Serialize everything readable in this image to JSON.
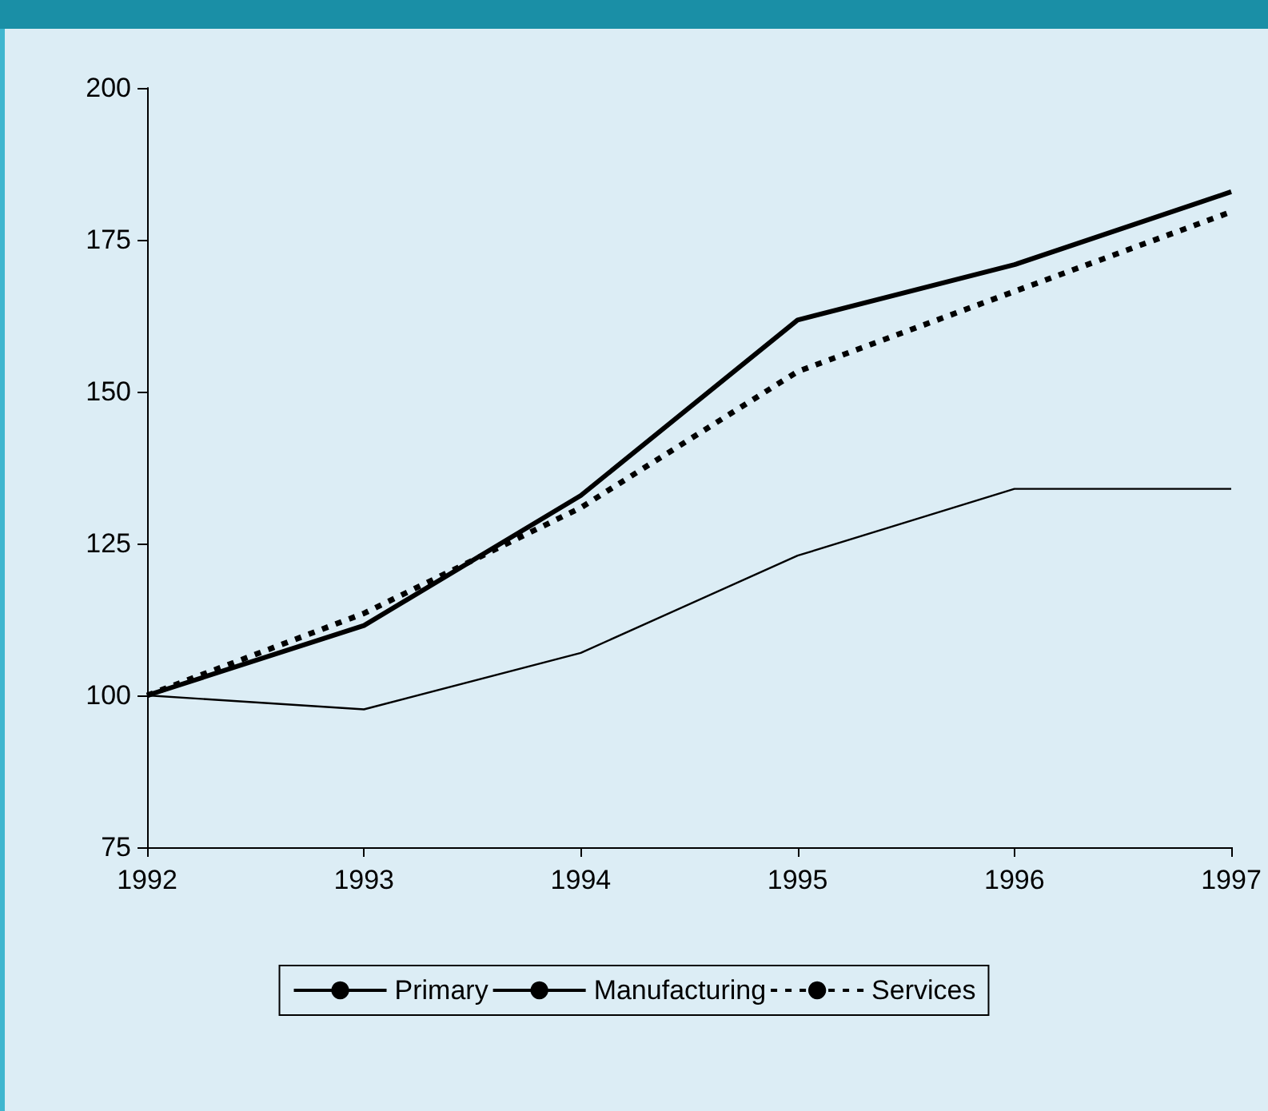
{
  "chart_data": {
    "type": "line",
    "categories": [
      "1992",
      "1993",
      "1994",
      "1995",
      "1996",
      "1997"
    ],
    "series": [
      {
        "name": "Primary",
        "color": "#000000",
        "line_style": "solid",
        "values": [
          100,
          97.7,
          107,
          123,
          134,
          134
        ]
      },
      {
        "name": "Manufacturing",
        "color": "#000000",
        "line_style": "solid",
        "values": [
          100,
          111.5,
          132.9,
          161.8,
          170.9,
          182.9
        ]
      },
      {
        "name": "Services",
        "color": "#000000",
        "line_style": "dashed",
        "values": [
          100,
          113.5,
          130.9,
          153.3,
          166.5,
          179.6
        ]
      }
    ],
    "ylim": [
      75,
      200
    ],
    "yticks": [
      75,
      100,
      125,
      150,
      175,
      200
    ],
    "grid": false,
    "legend": "bottom",
    "marker": "none"
  }
}
